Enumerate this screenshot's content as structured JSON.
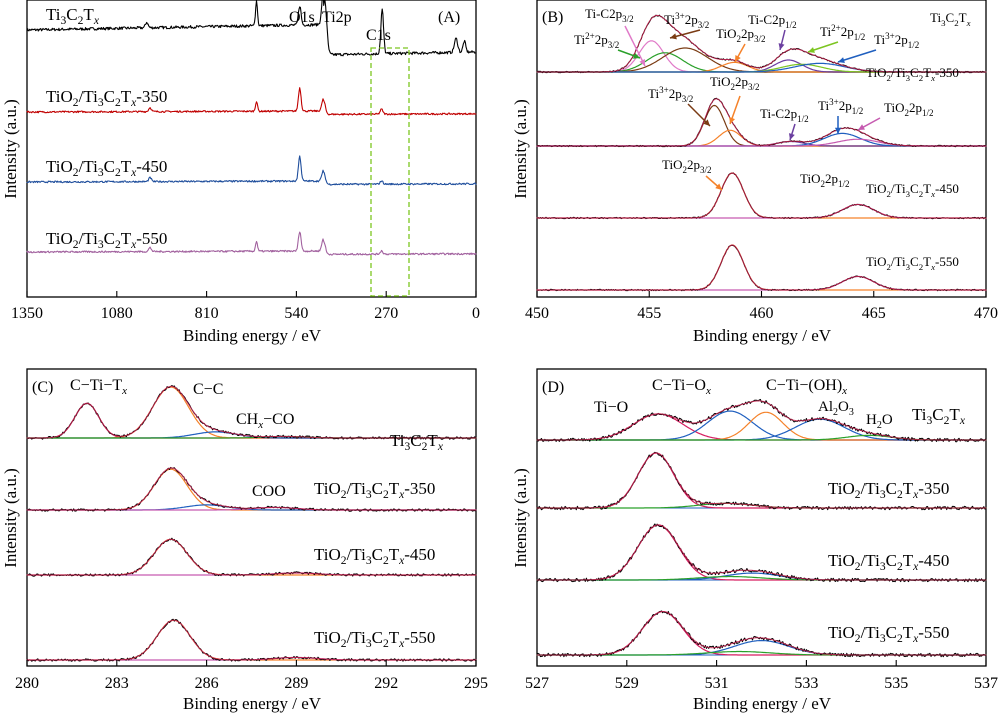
{
  "chart_data": [
    {
      "type": "line",
      "panel": "(A)",
      "xlabel": "Binding energy / eV",
      "ylabel": "Intensity (a.u.)",
      "xlim": [
        1350,
        0
      ],
      "xticks": [
        "1350",
        "1080",
        "810",
        "540",
        "270",
        "0"
      ],
      "yticks": [],
      "xunit": "eV",
      "annotations": [
        "O1s",
        "Ti2p",
        "C1s"
      ],
      "series": [
        {
          "name": "Ti3C2Tx",
          "label": {
            "pre": "Ti",
            "s1": "3",
            "m1": "C",
            "s2": "2",
            "m2": "T",
            "sx": "x",
            "post": ""
          },
          "color": "#000000",
          "offset": 3.0,
          "cscale": 1.0,
          "peaks": [
            [
              530,
              0.35,
              4
            ],
            [
              455,
              1.0,
              6
            ],
            [
              282,
              0.8,
              4
            ],
            [
              660,
              0.45,
              3
            ],
            [
              990,
              0.1,
              4
            ],
            [
              60,
              0.25,
              5
            ],
            [
              35,
              0.2,
              4
            ]
          ]
        },
        {
          "name": "TiO2/Ti3C2Tx-350",
          "label": {
            "pre": "TiO",
            "s0": "2",
            "mid": "/Ti",
            "s1": "3",
            "m1": "C",
            "s2": "2",
            "m2": "T",
            "sx": "x",
            "post": "-350"
          },
          "color": "#c00000",
          "offset": 2.0,
          "cscale": 0.4,
          "peaks": [
            [
              530,
              0.7,
              4
            ],
            [
              458,
              0.4,
              5
            ],
            [
              284,
              0.15,
              4
            ],
            [
              660,
              0.3,
              3
            ],
            [
              980,
              0.12,
              4
            ]
          ]
        },
        {
          "name": "TiO2/Ti3C2Tx-450",
          "label": {
            "pre": "TiO",
            "s0": "2",
            "mid": "/Ti",
            "s1": "3",
            "m1": "C",
            "s2": "2",
            "m2": "T",
            "sx": "x",
            "post": "-450"
          },
          "color": "#1f4e9c",
          "offset": 1.0,
          "cscale": 0.4,
          "peaks": [
            [
              530,
              0.75,
              4
            ],
            [
              458,
              0.35,
              5
            ],
            [
              284,
              0.1,
              4
            ],
            [
              980,
              0.12,
              4
            ]
          ]
        },
        {
          "name": "TiO2/Ti3C2Tx-550",
          "label": {
            "pre": "TiO",
            "s0": "2",
            "mid": "/Ti",
            "s1": "3",
            "m1": "C",
            "s2": "2",
            "m2": "T",
            "sx": "x",
            "post": "-550"
          },
          "color": "#a2629f",
          "offset": 0.0,
          "cscale": 0.4,
          "peaks": [
            [
              530,
              0.6,
              4
            ],
            [
              458,
              0.4,
              5
            ],
            [
              284,
              0.1,
              4
            ],
            [
              660,
              0.3,
              3
            ],
            [
              980,
              0.12,
              4
            ]
          ]
        }
      ]
    },
    {
      "type": "line",
      "panel": "(B)",
      "xlabel": "Binding energy / eV",
      "ylabel": "Intensity (a.u.)",
      "xlim": [
        450,
        470
      ],
      "xticks": [
        "450",
        "455",
        "460",
        "465",
        "470"
      ],
      "yticks": [],
      "series": [
        {
          "name": "Ti3C2Tx",
          "label": {
            "pre": "Ti",
            "s1": "3",
            "m1": "C",
            "s2": "2",
            "m2": "T",
            "sx": "x",
            "post": ""
          },
          "offset": 3.0,
          "scale": 0.8,
          "components": [
            {
              "name": "Ti-C2p3/2",
              "center": 455.1,
              "height": 0.65,
              "width": 0.55,
              "color": "#e07ac8"
            },
            {
              "name": "Ti2+2p3/2",
              "center": 455.7,
              "height": 0.4,
              "width": 0.8,
              "color": "#2aa02a"
            },
            {
              "name": "Ti3+2p3/2",
              "center": 456.6,
              "height": 0.5,
              "width": 1.0,
              "color": "#7a3b13"
            },
            {
              "name": "TiO22p3/2",
              "center": 458.8,
              "height": 0.2,
              "width": 0.6,
              "color": "#f5822a"
            },
            {
              "name": "Ti-C2p1/2",
              "center": 461.2,
              "height": 0.25,
              "width": 0.6,
              "color": "#6b3fa0"
            },
            {
              "name": "Ti2+2p1/2",
              "center": 461.8,
              "height": 0.16,
              "width": 0.9,
              "color": "#7cc520"
            },
            {
              "name": "Ti3+2p1/2",
              "center": 462.6,
              "height": 0.18,
              "width": 1.1,
              "color": "#1f5fbf"
            }
          ]
        },
        {
          "name": "TiO2/Ti3C2Tx-350",
          "label": {
            "pre": "TiO",
            "s0": "2",
            "mid": "/Ti",
            "s1": "3",
            "m1": "C",
            "s2": "2",
            "m2": "T",
            "sx": "x",
            "post": "-350"
          },
          "offset": 2.0,
          "scale": 0.75,
          "components": [
            {
              "name": "Ti3+2p3/2",
              "center": 457.9,
              "height": 0.9,
              "width": 0.45,
              "color": "#7a3b13"
            },
            {
              "name": "TiO22p3/2",
              "center": 458.6,
              "height": 0.35,
              "width": 0.5,
              "color": "#f5822a"
            },
            {
              "name": "Ti-C2p1/2",
              "center": 461.3,
              "height": 0.1,
              "width": 0.6,
              "color": "#6b3fa0"
            },
            {
              "name": "Ti3+2p1/2",
              "center": 463.6,
              "height": 0.28,
              "width": 0.8,
              "color": "#1f5fbf"
            },
            {
              "name": "TiO22p1/2",
              "center": 464.3,
              "height": 0.15,
              "width": 0.9,
              "color": "#c65ab0"
            }
          ]
        },
        {
          "name": "TiO2/Ti3C2Tx-450",
          "label": {
            "pre": "TiO",
            "s0": "2",
            "mid": "/Ti",
            "s1": "3",
            "m1": "C",
            "s2": "2",
            "m2": "T",
            "sx": "x",
            "post": "-450"
          },
          "offset": 1.0,
          "scale": 0.75,
          "components": [
            {
              "name": "TiO22p3/2",
              "center": 458.7,
              "height": 1.0,
              "width": 0.5,
              "color": "#f5822a"
            },
            {
              "name": "TiO22p1/2",
              "center": 464.3,
              "height": 0.3,
              "width": 0.7,
              "color": "#c65ab0"
            }
          ]
        },
        {
          "name": "TiO2/Ti3C2Tx-550",
          "label": {
            "pre": "TiO",
            "s0": "2",
            "mid": "/Ti",
            "s1": "3",
            "m1": "C",
            "s2": "2",
            "m2": "T",
            "sx": "x",
            "post": "-550"
          },
          "offset": 0.0,
          "scale": 0.75,
          "components": [
            {
              "name": "TiO22p3/2",
              "center": 458.7,
              "height": 1.0,
              "width": 0.5,
              "color": "#f5822a"
            },
            {
              "name": "TiO22p1/2",
              "center": 464.3,
              "height": 0.3,
              "width": 0.7,
              "color": "#c65ab0"
            }
          ]
        }
      ]
    },
    {
      "type": "line",
      "panel": "(C)",
      "xlabel": "Binding energy / eV",
      "ylabel": "Intensity (a.u.)",
      "xlim": [
        280,
        295
      ],
      "xticks": [
        "280",
        "283",
        "286",
        "289",
        "292",
        "295"
      ],
      "yticks": [],
      "series": [
        {
          "name": "Ti3C2Tx",
          "label": {
            "pre": "Ti",
            "s1": "3",
            "m1": "C",
            "s2": "2",
            "m2": "T",
            "sx": "x",
            "post": ""
          },
          "offset": 3.0,
          "scale": 0.85,
          "components": [
            {
              "name": "C-Ti-Tx",
              "center": 282.0,
              "height": 0.68,
              "width": 0.4,
              "color": "#d61c5f"
            },
            {
              "name": "C-C",
              "center": 284.8,
              "height": 1.0,
              "width": 0.6,
              "color": "#f5822a"
            },
            {
              "name": "CHx-CO",
              "center": 286.3,
              "height": 0.12,
              "width": 0.7,
              "color": "#1f5fbf"
            },
            {
              "name": "COO",
              "center": 288.6,
              "height": 0.03,
              "width": 0.7,
              "color": "#2aa02a"
            }
          ]
        },
        {
          "name": "TiO2/Ti3C2Tx-350",
          "label": {
            "pre": "TiO",
            "s0": "2",
            "mid": "/Ti",
            "s1": "3",
            "m1": "C",
            "s2": "2",
            "m2": "T",
            "sx": "x",
            "post": "-350"
          },
          "offset": 2.0,
          "scale": 0.85,
          "components": [
            {
              "name": "C-C",
              "center": 284.8,
              "height": 0.8,
              "width": 0.55,
              "color": "#f5822a"
            },
            {
              "name": "CHx-CO",
              "center": 286.0,
              "height": 0.1,
              "width": 0.7,
              "color": "#1f5fbf"
            },
            {
              "name": "COO",
              "center": 288.3,
              "height": 0.05,
              "width": 0.7,
              "color": "#c65ab0"
            }
          ]
        },
        {
          "name": "TiO2/Ti3C2Tx-450",
          "label": {
            "pre": "TiO",
            "s0": "2",
            "mid": "/Ti",
            "s1": "3",
            "m1": "C",
            "s2": "2",
            "m2": "T",
            "sx": "x",
            "post": "-450"
          },
          "offset": 1.0,
          "scale": 0.85,
          "components": [
            {
              "name": "C-C",
              "center": 284.8,
              "height": 0.7,
              "width": 0.55,
              "color": "#f5822a"
            },
            {
              "name": "COO",
              "center": 289.0,
              "height": 0.04,
              "width": 0.7,
              "color": "#c65ab0"
            }
          ]
        },
        {
          "name": "TiO2/Ti3C2Tx-550",
          "label": {
            "pre": "TiO",
            "s0": "2",
            "mid": "/Ti",
            "s1": "3",
            "m1": "C",
            "s2": "2",
            "m2": "T",
            "sx": "x",
            "post": "-550"
          },
          "offset": 0.0,
          "scale": 0.85,
          "components": [
            {
              "name": "C-C",
              "center": 284.9,
              "height": 0.78,
              "width": 0.55,
              "color": "#f5822a"
            },
            {
              "name": "COO",
              "center": 289.0,
              "height": 0.05,
              "width": 0.7,
              "color": "#c65ab0"
            }
          ]
        }
      ]
    },
    {
      "type": "line",
      "panel": "(D)",
      "xlabel": "Binding energy / eV",
      "ylabel": "Intensity (a.u.)",
      "xlim": [
        527,
        537
      ],
      "xticks": [
        "527",
        "529",
        "531",
        "533",
        "535",
        "537"
      ],
      "yticks": [],
      "series": [
        {
          "name": "Ti3C2Tx",
          "label": {
            "pre": "Ti",
            "s1": "3",
            "m1": "C",
            "s2": "2",
            "m2": "T",
            "sx": "x",
            "post": ""
          },
          "offset": 3.0,
          "scale": 0.85,
          "components": [
            {
              "name": "Ti-O",
              "center": 529.7,
              "height": 0.45,
              "width": 0.55,
              "color": "#d61c5f"
            },
            {
              "name": "C-Ti-Ox",
              "center": 531.3,
              "height": 0.5,
              "width": 0.5,
              "color": "#1f5fbf"
            },
            {
              "name": "C-Ti-(OH)x",
              "center": 532.1,
              "height": 0.48,
              "width": 0.38,
              "color": "#f5822a"
            },
            {
              "name": "Al2O3",
              "center": 533.3,
              "height": 0.36,
              "width": 0.55,
              "color": "#1f5fbf"
            },
            {
              "name": "H2O",
              "center": 534.4,
              "height": 0.08,
              "width": 0.5,
              "color": "#2aa02a"
            }
          ]
        },
        {
          "name": "TiO2/Ti3C2Tx-350",
          "label": {
            "pre": "TiO",
            "s0": "2",
            "mid": "/Ti",
            "s1": "3",
            "m1": "C",
            "s2": "2",
            "m2": "T",
            "sx": "x",
            "post": "-350"
          },
          "offset": 2.0,
          "scale": 0.85,
          "components": [
            {
              "name": "Ti-O",
              "center": 529.65,
              "height": 0.95,
              "width": 0.4,
              "color": "#d61c5f"
            },
            {
              "name": "C-Ti-Ox",
              "center": 531.2,
              "height": 0.08,
              "width": 0.6,
              "color": "#2aa02a"
            }
          ]
        },
        {
          "name": "TiO2/Ti3C2Tx-450",
          "label": {
            "pre": "TiO",
            "s0": "2",
            "mid": "/Ti",
            "s1": "3",
            "m1": "C",
            "s2": "2",
            "m2": "T",
            "sx": "x",
            "post": "-450"
          },
          "offset": 1.0,
          "scale": 0.85,
          "components": [
            {
              "name": "Ti-O",
              "center": 529.7,
              "height": 0.95,
              "width": 0.45,
              "color": "#d61c5f"
            },
            {
              "name": "C-Ti-Ox",
              "center": 531.8,
              "height": 0.12,
              "width": 0.6,
              "color": "#1f5fbf"
            },
            {
              "name": "C-Ti-(OH)x",
              "center": 531.3,
              "height": 0.06,
              "width": 0.7,
              "color": "#2aa02a"
            }
          ]
        },
        {
          "name": "TiO2/Ti3C2Tx-550",
          "label": {
            "pre": "TiO",
            "s0": "2",
            "mid": "/Ti",
            "s1": "3",
            "m1": "C",
            "s2": "2",
            "m2": "T",
            "sx": "x",
            "post": "-550"
          },
          "offset": 0.0,
          "scale": 0.85,
          "components": [
            {
              "name": "Ti-O",
              "center": 529.8,
              "height": 0.75,
              "width": 0.45,
              "color": "#d61c5f"
            },
            {
              "name": "C-Ti-Ox",
              "center": 532.0,
              "height": 0.25,
              "width": 0.6,
              "color": "#1f5fbf"
            },
            {
              "name": "C-Ti-(OH)x",
              "center": 531.5,
              "height": 0.06,
              "width": 0.7,
              "color": "#2aa02a"
            }
          ]
        }
      ]
    }
  ],
  "panel_B_labels": [
    {
      "text": "Ti-C2p",
      "sub": "3/2"
    },
    {
      "text": "Ti",
      "sup": "2+",
      "tail": "2p",
      "sub": "3/2"
    },
    {
      "text": "Ti",
      "sup": "3+",
      "tail": "2p",
      "sub": "3/2"
    },
    {
      "text": "TiO",
      "s2": "2",
      "tail": "2p",
      "sub": "3/2"
    },
    {
      "text": "Ti-C2p",
      "sub": "1/2"
    },
    {
      "text": "Ti",
      "sup": "2+",
      "tail": "2p",
      "sub": "1/2"
    },
    {
      "text": "Ti",
      "sup": "3+",
      "tail": "2p",
      "sub": "1/2"
    },
    {
      "text": "Ti",
      "sup": "3+",
      "tail": "2p",
      "sub": "3/2"
    },
    {
      "text": "TiO",
      "s2": "2",
      "tail": "2p",
      "sub": "3/2"
    },
    {
      "text": "Ti-C2p",
      "sub": "1/2"
    },
    {
      "text": "Ti",
      "sup": "3+",
      "tail": "2p",
      "sub": "1/2"
    },
    {
      "text": "TiO",
      "s2": "2",
      "tail": "2p",
      "sub": "1/2"
    },
    {
      "text": "TiO",
      "s2": "2",
      "tail": "2p",
      "sub": "3/2"
    },
    {
      "text": "TiO",
      "s2": "2",
      "tail": "2p",
      "sub": "1/2"
    }
  ],
  "panel_C_labels": {
    "cti": "C−Ti−T",
    "cti_sub": "x",
    "cc": "C−C",
    "chx": "CH",
    "chx_sub": "x",
    "chx_tail": "−CO",
    "coo": "COO"
  },
  "panel_D_labels": {
    "tio": "Ti−O",
    "ctiox": "C−Ti−O",
    "ctiox_sub": "x",
    "ctioh": "C−Ti−(OH)",
    "ctioh_sub": "x",
    "al": "Al",
    "al_s1": "2",
    "al_mid": "O",
    "al_s2": "3",
    "h2o": "H",
    "h2o_s": "2",
    "h2o_tail": "O"
  }
}
